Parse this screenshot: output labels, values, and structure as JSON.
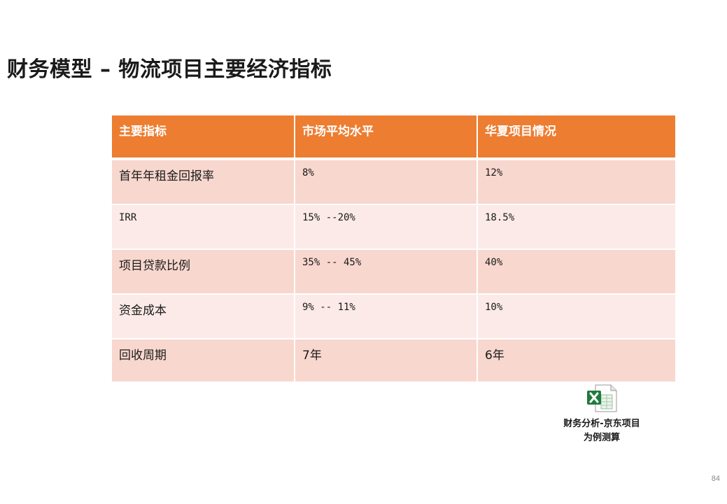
{
  "slide": {
    "title": "财务模型 – 物流项目主要经济指标",
    "page_number": "84"
  },
  "table": {
    "headers": [
      "主要指标",
      "市场平均水平",
      "华夏项目情况"
    ],
    "rows": [
      [
        "首年年租金回报率",
        "8%",
        "12%"
      ],
      [
        "IRR",
        "15% --20%",
        "18.5%"
      ],
      [
        "项目贷款比例",
        "35% -- 45%",
        "40%"
      ],
      [
        "资金成本",
        "9% -- 11%",
        "10%"
      ],
      [
        "回收周期",
        "7年",
        "6年"
      ]
    ],
    "colors": {
      "header_bg": "#ed7d31",
      "row_odd_bg": "#f8d7ce",
      "row_even_bg": "#fbeae7"
    }
  },
  "attachment": {
    "icon": "excel-file-icon",
    "label": "财务分析-京东项目为例测算"
  }
}
